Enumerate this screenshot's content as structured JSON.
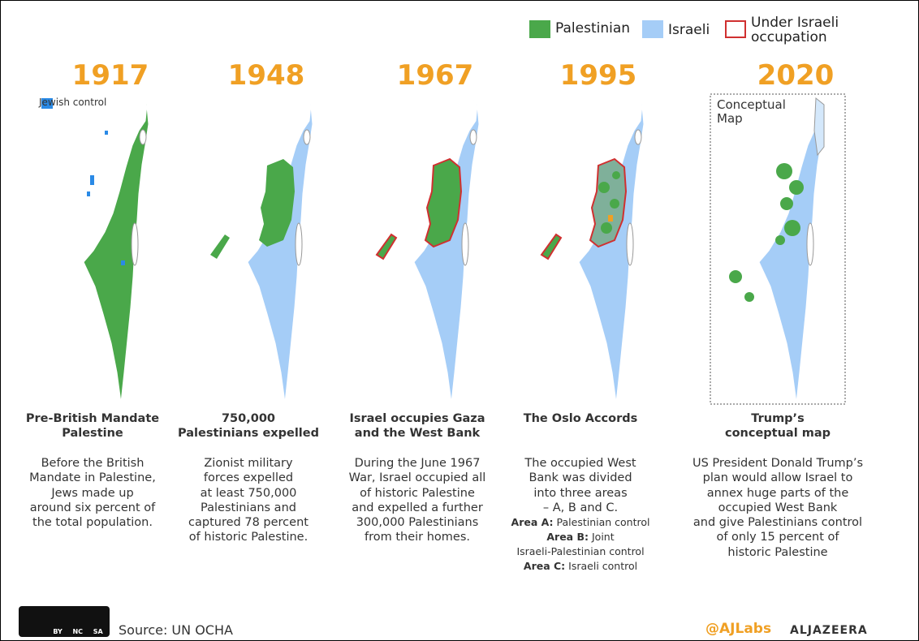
{
  "legend": {
    "items": [
      "Palestinian",
      "Israeli",
      "Under Israeli occupation"
    ]
  },
  "panels": [
    {
      "year": "1917",
      "note": "Jewish control",
      "heading": [
        "Pre-British Mandate",
        "Palestine"
      ],
      "body": [
        "Before the British",
        "Mandate in Palestine,",
        "Jews made up",
        "around six percent of",
        "the total population."
      ]
    },
    {
      "year": "1948",
      "heading": [
        "750,000",
        "Palestinians expelled"
      ],
      "body": [
        "Zionist military",
        "forces expelled",
        "at least 750,000",
        "Palestinians and",
        "captured 78 percent",
        "of historic Palestine."
      ]
    },
    {
      "year": "1967",
      "heading": [
        "Israel occupies Gaza",
        "and the West Bank"
      ],
      "body": [
        "During the June 1967",
        "War, Israel occupied all",
        "of historic Palestine",
        "and expelled a further",
        "300,000 Palestinians",
        "from their homes."
      ]
    },
    {
      "year": "1995",
      "heading": [
        "The Oslo Accords"
      ],
      "body": [
        "The occupied West",
        "Bank was divided",
        "into three areas",
        "– A, B and C."
      ],
      "areas": [
        {
          "bold": "Area A:",
          "text": "Palestinian control"
        },
        {
          "bold": "Area B:",
          "text": "Joint"
        },
        "Israeli-Palestinian control",
        {
          "bold": "Area C:",
          "text": "Israeli control"
        }
      ]
    },
    {
      "year": "2020",
      "note": "Conceptual Map",
      "heading": [
        "Trump’s",
        "conceptual map"
      ],
      "body": [
        "US President Donald Trump’s",
        "plan would allow Israel to",
        "annex huge parts of the",
        "occupied West Bank",
        "and give Palestinians control",
        "of only 15 percent of",
        "historic Palestine"
      ]
    }
  ],
  "footer": {
    "license": [
      "BY",
      "NC",
      "SA"
    ],
    "source": "Source: UN OCHA",
    "handle": "@AJLabs",
    "brand": "ALJAZEERA"
  }
}
